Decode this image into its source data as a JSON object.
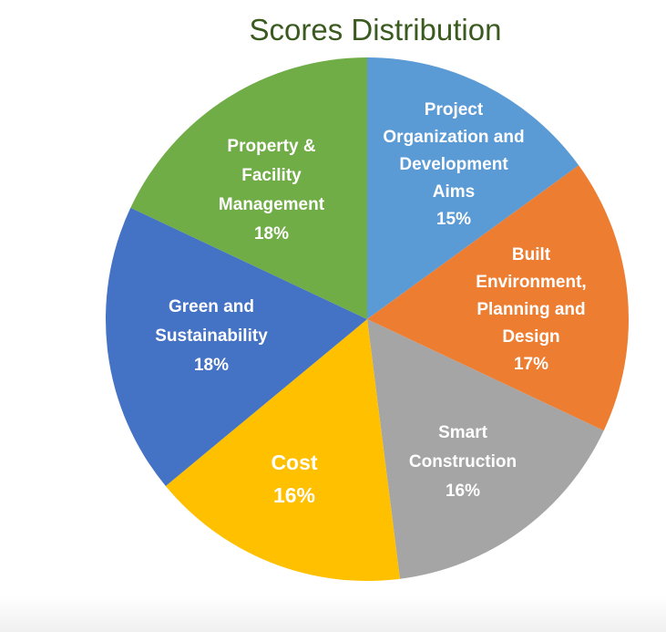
{
  "chart_data": {
    "type": "pie",
    "title": "Scores Distribution",
    "slices": [
      {
        "label_lines": [
          "Project",
          "Organization and",
          "Development",
          "Aims"
        ],
        "value": 15,
        "value_label": "15%",
        "color": "#5b9bd5"
      },
      {
        "label_lines": [
          "Built",
          "Environment,",
          "Planning and",
          "Design"
        ],
        "value": 17,
        "value_label": "17%",
        "color": "#ed7d31"
      },
      {
        "label_lines": [
          "Smart",
          "Construction"
        ],
        "value": 16,
        "value_label": "16%",
        "color": "#a5a5a5"
      },
      {
        "label_lines": [
          "Cost"
        ],
        "value": 16,
        "value_label": "16%",
        "color": "#ffc000"
      },
      {
        "label_lines": [
          "Green and",
          "Sustainability"
        ],
        "value": 18,
        "value_label": "18%",
        "color": "#4472c4"
      },
      {
        "label_lines": [
          "Property &",
          "Facility",
          "Management"
        ],
        "value": 18,
        "value_label": "18%",
        "color": "#70ad47"
      }
    ]
  }
}
